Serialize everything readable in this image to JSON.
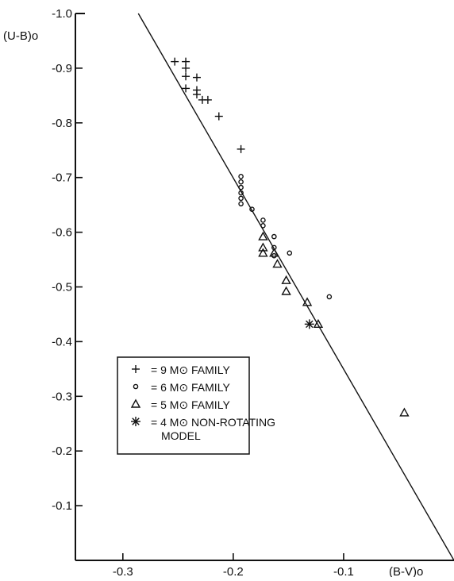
{
  "chart_data": {
    "type": "scatter",
    "title": "",
    "xlabel": "(B-V)o",
    "ylabel": "(U-B)o",
    "xlim": [
      -0.343,
      0.0
    ],
    "ylim": [
      0.0,
      -1.0
    ],
    "y_reversed": true,
    "x_ticks": [
      -0.3,
      -0.2,
      -0.1
    ],
    "x_tick_labels": [
      "-0.3",
      "-0.2",
      "-0.1"
    ],
    "y_ticks": [
      -0.1,
      -0.2,
      -0.3,
      -0.4,
      -0.5,
      -0.6,
      -0.7,
      -0.8,
      -0.9,
      -1.0
    ],
    "y_tick_labels": [
      "-0.1",
      "-0.2",
      "-0.3",
      "-0.4",
      "-0.5",
      "-0.6",
      "-0.7",
      "-0.8",
      "-0.9",
      "-1.0"
    ],
    "grid": false,
    "legend_position": "lower-left",
    "line": {
      "points": [
        [
          -0.286,
          -1.0
        ],
        [
          0.0,
          0.0
        ]
      ]
    },
    "series": [
      {
        "name": "= 9 Mo FAMILY",
        "marker": "plus",
        "points": [
          [
            -0.253,
            -0.912
          ],
          [
            -0.243,
            -0.912
          ],
          [
            -0.243,
            -0.9
          ],
          [
            -0.243,
            -0.885
          ],
          [
            -0.243,
            -0.863
          ],
          [
            -0.233,
            -0.883
          ],
          [
            -0.233,
            -0.86
          ],
          [
            -0.233,
            -0.852
          ],
          [
            -0.228,
            -0.842
          ],
          [
            -0.223,
            -0.842
          ],
          [
            -0.213,
            -0.812
          ],
          [
            -0.193,
            -0.752
          ]
        ]
      },
      {
        "name": "= 6 Mo FAMILY",
        "marker": "circle",
        "points": [
          [
            -0.193,
            -0.702
          ],
          [
            -0.193,
            -0.692
          ],
          [
            -0.193,
            -0.682
          ],
          [
            -0.193,
            -0.672
          ],
          [
            -0.193,
            -0.662
          ],
          [
            -0.193,
            -0.652
          ],
          [
            -0.183,
            -0.642
          ],
          [
            -0.173,
            -0.622
          ],
          [
            -0.173,
            -0.612
          ],
          [
            -0.163,
            -0.592
          ],
          [
            -0.163,
            -0.572
          ],
          [
            -0.163,
            -0.557
          ],
          [
            -0.149,
            -0.562
          ],
          [
            -0.113,
            -0.482
          ]
        ]
      },
      {
        "name": "= 5 Mo FAMILY",
        "marker": "triangle",
        "points": [
          [
            -0.173,
            -0.592
          ],
          [
            -0.173,
            -0.572
          ],
          [
            -0.173,
            -0.562
          ],
          [
            -0.163,
            -0.562
          ],
          [
            -0.16,
            -0.542
          ],
          [
            -0.152,
            -0.512
          ],
          [
            -0.152,
            -0.492
          ],
          [
            -0.133,
            -0.472
          ],
          [
            -0.123,
            -0.432
          ],
          [
            -0.045,
            -0.27
          ]
        ]
      },
      {
        "name": "= 4 Mo NON-ROTATING\nMODEL",
        "marker": "asterisk",
        "points": [
          [
            -0.131,
            -0.432
          ]
        ]
      }
    ],
    "legend": [
      {
        "marker": "plus",
        "label": "= 9 M⊙ FAMILY"
      },
      {
        "marker": "circle",
        "label": "= 6 M⊙ FAMILY"
      },
      {
        "marker": "triangle",
        "label": "= 5 M⊙ FAMILY"
      },
      {
        "marker": "asterisk",
        "label": "= 4 M⊙ NON-ROTATING",
        "label2": "MODEL"
      }
    ]
  }
}
